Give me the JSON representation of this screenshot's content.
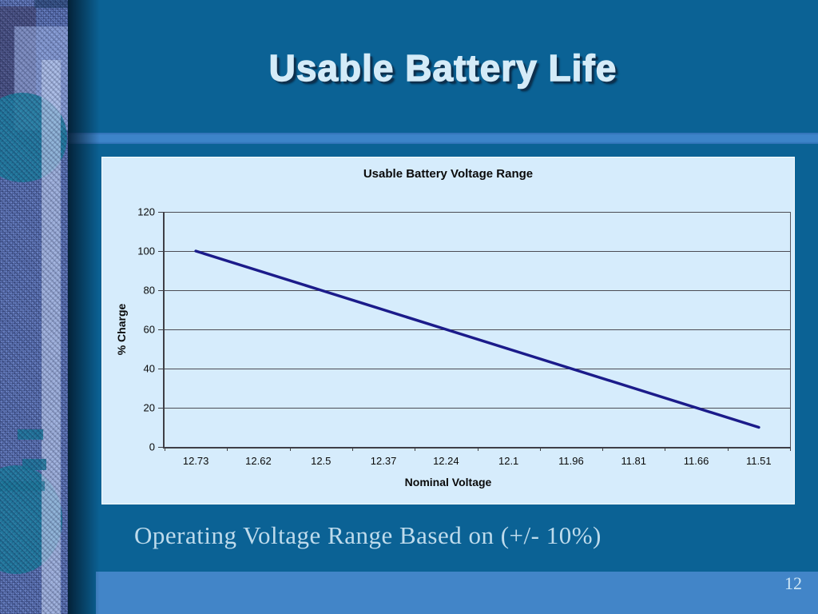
{
  "slide": {
    "title": "Usable Battery Life",
    "caption": "Operating Voltage Range Based on (+/- 10%)",
    "page_number": "12"
  },
  "colors": {
    "background": "#0b6295",
    "accent_bar": "#3d84c9",
    "bottom_bar": "#4285c8",
    "chart_background": "#d6ecfc",
    "gridline": "#4c4c54",
    "line": "#1b1b8a",
    "title_text": "#d4ebf8",
    "caption_text": "#bedbec"
  },
  "chart_data": {
    "type": "line",
    "title": "Usable Battery Voltage Range",
    "xlabel": "Nominal Voltage",
    "ylabel": "% Charge",
    "categories": [
      "12.73",
      "12.62",
      "12.5",
      "12.37",
      "12.24",
      "12.1",
      "11.96",
      "11.81",
      "11.66",
      "11.51"
    ],
    "series": [
      {
        "name": "% Charge",
        "values": [
          100,
          90,
          80,
          70,
          60,
          50,
          40,
          30,
          20,
          10
        ]
      }
    ],
    "ylim": [
      0,
      120
    ],
    "yticks": [
      0,
      20,
      40,
      60,
      80,
      100,
      120
    ],
    "ytick_interval": 20,
    "grid": true,
    "legend": false
  }
}
